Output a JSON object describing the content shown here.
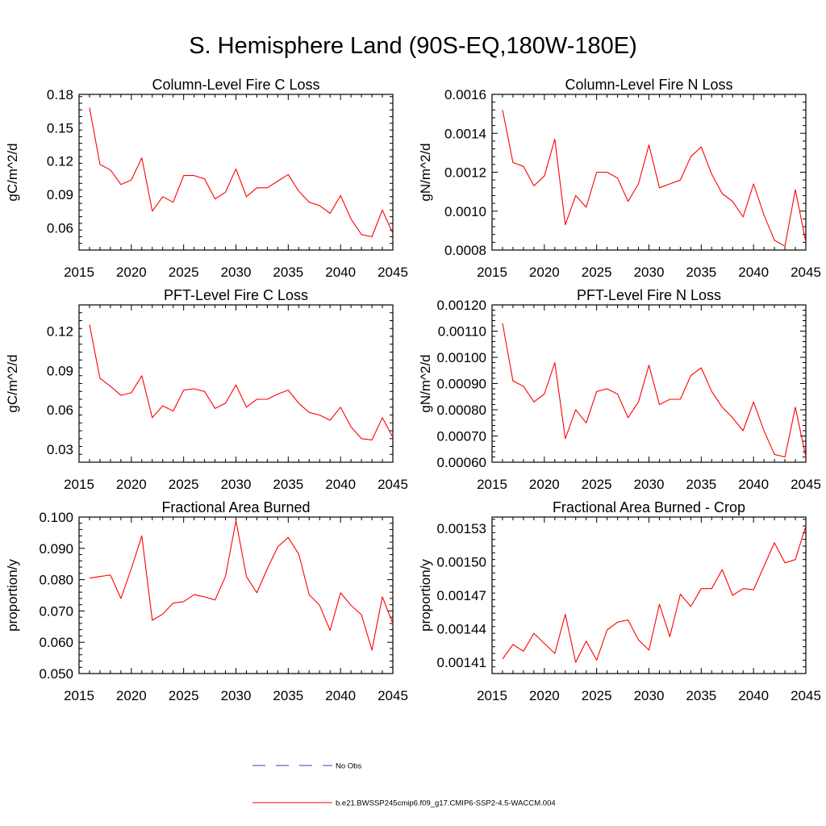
{
  "figure": {
    "title": "S. Hemisphere Land (90S-EQ,180W-180E)"
  },
  "legend": {
    "items": [
      {
        "label": "No Obs",
        "color": "#3b3bc8",
        "style": "dashed"
      },
      {
        "label": "b.e21.BWSSP245cmip6.f09_g17.CMIP6-SSP2-4.5-WACCM.004",
        "color": "#ff0000",
        "style": "solid"
      }
    ]
  },
  "chart_data": [
    {
      "type": "line",
      "title": "Column-Level Fire C Loss",
      "xlabel": "",
      "ylabel": "gC/m^2/d",
      "xlim": [
        2015,
        2045
      ],
      "ylim": [
        0.04,
        0.18
      ],
      "xticks": [
        "2015",
        "2020",
        "2025",
        "2030",
        "2035",
        "2040",
        "2045"
      ],
      "yticks": [
        "0.06",
        "0.09",
        "0.12",
        "0.15",
        "0.18"
      ],
      "series": [
        {
          "color": "#ff0000",
          "x": [
            2016,
            2017,
            2018,
            2019,
            2020,
            2021,
            2022,
            2023,
            2024,
            2025,
            2026,
            2027,
            2028,
            2029,
            2030,
            2031,
            2032,
            2033,
            2034,
            2035,
            2036,
            2037,
            2038,
            2039,
            2040,
            2041,
            2042,
            2043,
            2044,
            2045
          ],
          "values": [
            0.168,
            0.117,
            0.112,
            0.099,
            0.103,
            0.123,
            0.075,
            0.088,
            0.083,
            0.107,
            0.107,
            0.104,
            0.086,
            0.092,
            0.113,
            0.088,
            0.096,
            0.096,
            0.102,
            0.108,
            0.093,
            0.083,
            0.08,
            0.073,
            0.089,
            0.068,
            0.054,
            0.052,
            0.076,
            0.055
          ]
        }
      ]
    },
    {
      "type": "line",
      "title": "Column-Level Fire N Loss",
      "xlabel": "",
      "ylabel": "gN/m^2/d",
      "xlim": [
        2015,
        2045
      ],
      "ylim": [
        0.0008,
        0.0016
      ],
      "xticks": [
        "2015",
        "2020",
        "2025",
        "2030",
        "2035",
        "2040",
        "2045"
      ],
      "yticks": [
        "0.0008",
        "0.0010",
        "0.0012",
        "0.0014",
        "0.0016"
      ],
      "series": [
        {
          "color": "#ff0000",
          "x": [
            2016,
            2017,
            2018,
            2019,
            2020,
            2021,
            2022,
            2023,
            2024,
            2025,
            2026,
            2027,
            2028,
            2029,
            2030,
            2031,
            2032,
            2033,
            2034,
            2035,
            2036,
            2037,
            2038,
            2039,
            2040,
            2041,
            2042,
            2043,
            2044,
            2045
          ],
          "values": [
            0.00152,
            0.00125,
            0.00123,
            0.00113,
            0.00118,
            0.00137,
            0.00093,
            0.00108,
            0.00102,
            0.0012,
            0.0012,
            0.00117,
            0.00105,
            0.00114,
            0.00134,
            0.00112,
            0.00114,
            0.00116,
            0.00128,
            0.00133,
            0.00119,
            0.00109,
            0.00105,
            0.00097,
            0.00114,
            0.00098,
            0.00085,
            0.00082,
            0.00111,
            0.00084
          ]
        }
      ]
    },
    {
      "type": "line",
      "title": "PFT-Level Fire C Loss",
      "xlabel": "",
      "ylabel": "gC/m^2/d",
      "xlim": [
        2015,
        2045
      ],
      "ylim": [
        0.02,
        0.14
      ],
      "xticks": [
        "2015",
        "2020",
        "2025",
        "2030",
        "2035",
        "2040",
        "2045"
      ],
      "yticks": [
        "0.03",
        "0.06",
        "0.09",
        "0.12"
      ],
      "series": [
        {
          "color": "#ff0000",
          "x": [
            2016,
            2017,
            2018,
            2019,
            2020,
            2021,
            2022,
            2023,
            2024,
            2025,
            2026,
            2027,
            2028,
            2029,
            2030,
            2031,
            2032,
            2033,
            2034,
            2035,
            2036,
            2037,
            2038,
            2039,
            2040,
            2041,
            2042,
            2043,
            2044,
            2045
          ],
          "values": [
            0.125,
            0.084,
            0.078,
            0.071,
            0.073,
            0.086,
            0.054,
            0.063,
            0.059,
            0.075,
            0.076,
            0.074,
            0.061,
            0.065,
            0.079,
            0.062,
            0.068,
            0.068,
            0.072,
            0.075,
            0.065,
            0.058,
            0.056,
            0.052,
            0.062,
            0.047,
            0.038,
            0.037,
            0.054,
            0.039
          ]
        }
      ]
    },
    {
      "type": "line",
      "title": "PFT-Level Fire N Loss",
      "xlabel": "",
      "ylabel": "gN/m^2/d",
      "xlim": [
        2015,
        2045
      ],
      "ylim": [
        0.0006,
        0.0012
      ],
      "xticks": [
        "2015",
        "2020",
        "2025",
        "2030",
        "2035",
        "2040",
        "2045"
      ],
      "yticks": [
        "0.00060",
        "0.00070",
        "0.00080",
        "0.00090",
        "0.00100",
        "0.00110",
        "0.00120"
      ],
      "series": [
        {
          "color": "#ff0000",
          "x": [
            2016,
            2017,
            2018,
            2019,
            2020,
            2021,
            2022,
            2023,
            2024,
            2025,
            2026,
            2027,
            2028,
            2029,
            2030,
            2031,
            2032,
            2033,
            2034,
            2035,
            2036,
            2037,
            2038,
            2039,
            2040,
            2041,
            2042,
            2043,
            2044,
            2045
          ],
          "values": [
            0.00113,
            0.00091,
            0.00089,
            0.00083,
            0.00086,
            0.00098,
            0.00069,
            0.0008,
            0.00075,
            0.00087,
            0.00088,
            0.00086,
            0.00077,
            0.00083,
            0.00097,
            0.00082,
            0.00084,
            0.00084,
            0.00093,
            0.00096,
            0.00087,
            0.00081,
            0.00077,
            0.00072,
            0.00083,
            0.00072,
            0.00063,
            0.00062,
            0.00081,
            0.00062
          ]
        }
      ]
    },
    {
      "type": "line",
      "title": "Fractional Area Burned",
      "xlabel": "",
      "ylabel": "proportion/y",
      "xlim": [
        2015,
        2045
      ],
      "ylim": [
        0.05,
        0.1
      ],
      "xticks": [
        "2015",
        "2020",
        "2025",
        "2030",
        "2035",
        "2040",
        "2045"
      ],
      "yticks": [
        "0.050",
        "0.060",
        "0.070",
        "0.080",
        "0.090",
        "0.100"
      ],
      "series": [
        {
          "color": "#ff0000",
          "x": [
            2016,
            2017,
            2018,
            2019,
            2020,
            2021,
            2022,
            2023,
            2024,
            2025,
            2026,
            2027,
            2028,
            2029,
            2030,
            2031,
            2032,
            2033,
            2034,
            2035,
            2036,
            2037,
            2038,
            2039,
            2040,
            2041,
            2042,
            2043,
            2044,
            2045
          ],
          "values": [
            0.0805,
            0.081,
            0.0815,
            0.074,
            0.0835,
            0.094,
            0.067,
            0.069,
            0.0725,
            0.073,
            0.0752,
            0.0745,
            0.0735,
            0.081,
            0.0988,
            0.081,
            0.0758,
            0.0835,
            0.0905,
            0.0935,
            0.0882,
            0.0752,
            0.0718,
            0.0638,
            0.0758,
            0.0718,
            0.0688,
            0.0575,
            0.0745,
            0.066
          ]
        }
      ]
    },
    {
      "type": "line",
      "title": "Fractional Area Burned - Crop",
      "xlabel": "",
      "ylabel": "proportion/y",
      "xlim": [
        2015,
        2045
      ],
      "ylim": [
        0.0014,
        0.00154
      ],
      "xticks": [
        "2015",
        "2020",
        "2025",
        "2030",
        "2035",
        "2040",
        "2045"
      ],
      "yticks": [
        "0.00141",
        "0.00144",
        "0.00147",
        "0.00150",
        "0.00153"
      ],
      "series": [
        {
          "color": "#ff0000",
          "x": [
            2016,
            2017,
            2018,
            2019,
            2020,
            2021,
            2022,
            2023,
            2024,
            2025,
            2026,
            2027,
            2028,
            2029,
            2030,
            2031,
            2032,
            2033,
            2034,
            2035,
            2036,
            2037,
            2038,
            2039,
            2040,
            2041,
            2042,
            2043,
            2044,
            2045
          ],
          "values": [
            0.001413,
            0.001426,
            0.00142,
            0.001436,
            0.001427,
            0.001418,
            0.001453,
            0.00141,
            0.001429,
            0.001412,
            0.001439,
            0.001446,
            0.001448,
            0.00143,
            0.001421,
            0.001462,
            0.001433,
            0.001471,
            0.00146,
            0.001476,
            0.001476,
            0.001493,
            0.00147,
            0.001476,
            0.001475,
            0.001496,
            0.001517,
            0.001499,
            0.001502,
            0.001532
          ]
        }
      ]
    }
  ]
}
